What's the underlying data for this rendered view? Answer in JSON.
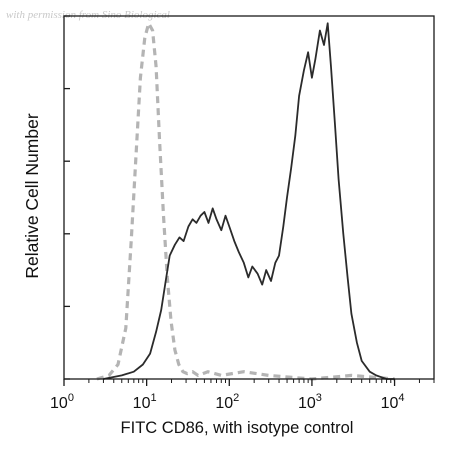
{
  "watermark": "with permission from Sino Biological",
  "chart_data": {
    "type": "line",
    "xlabel": "FITC CD86, with isotype control",
    "ylabel": "Relative Cell Number",
    "x_scale": "log",
    "xlim": [
      1,
      30000
    ],
    "ylim": [
      0,
      1
    ],
    "x_ticks": [
      {
        "value": 1,
        "base": "10",
        "exp": "0"
      },
      {
        "value": 10,
        "base": "10",
        "exp": "1"
      },
      {
        "value": 100,
        "base": "10",
        "exp": "2"
      },
      {
        "value": 1000,
        "base": "10",
        "exp": "3"
      },
      {
        "value": 10000,
        "base": "10",
        "exp": "4"
      }
    ],
    "y_ticks": [
      0,
      0.2,
      0.4,
      0.6,
      0.8,
      1.0
    ],
    "grid": false,
    "series": [
      {
        "style": "dashed",
        "color": "#b4b4b4",
        "x": [
          2.5,
          3.5,
          4.5,
          5.6,
          6.5,
          7.5,
          8.4,
          9.5,
          10.6,
          11.8,
          13.0,
          14.3,
          16.0,
          17.8,
          19.7,
          22.0,
          24.5,
          27.5,
          31,
          36,
          42,
          55,
          80,
          150,
          300,
          1000,
          3000,
          10000
        ],
        "y": [
          0.0,
          0.01,
          0.04,
          0.14,
          0.38,
          0.63,
          0.83,
          0.94,
          0.98,
          0.96,
          0.86,
          0.66,
          0.45,
          0.28,
          0.16,
          0.08,
          0.04,
          0.02,
          0.015,
          0.02,
          0.01,
          0.02,
          0.01,
          0.02,
          0.01,
          0.0,
          0.01,
          0.0
        ]
      },
      {
        "style": "solid",
        "color": "#2b2b2b",
        "x": [
          3,
          5,
          7,
          9,
          11,
          13,
          15,
          17,
          19,
          22,
          25,
          28,
          32,
          36,
          40,
          45,
          50,
          56,
          63,
          70,
          80,
          90,
          100,
          115,
          130,
          150,
          170,
          190,
          220,
          250,
          280,
          320,
          360,
          400,
          450,
          500,
          560,
          630,
          700,
          800,
          900,
          1000,
          1100,
          1250,
          1400,
          1550,
          1700,
          1900,
          2100,
          2400,
          2700,
          3000,
          3500,
          4000,
          5000,
          6000,
          8000,
          10000
        ],
        "y": [
          0.0,
          0.01,
          0.02,
          0.04,
          0.07,
          0.13,
          0.19,
          0.27,
          0.34,
          0.37,
          0.39,
          0.38,
          0.42,
          0.44,
          0.43,
          0.45,
          0.46,
          0.43,
          0.47,
          0.44,
          0.41,
          0.45,
          0.42,
          0.38,
          0.35,
          0.32,
          0.28,
          0.31,
          0.29,
          0.26,
          0.3,
          0.27,
          0.32,
          0.34,
          0.42,
          0.5,
          0.58,
          0.67,
          0.78,
          0.85,
          0.9,
          0.83,
          0.88,
          0.96,
          0.92,
          0.98,
          0.86,
          0.7,
          0.55,
          0.4,
          0.28,
          0.18,
          0.1,
          0.05,
          0.02,
          0.01,
          0.0,
          0.0
        ]
      }
    ]
  }
}
